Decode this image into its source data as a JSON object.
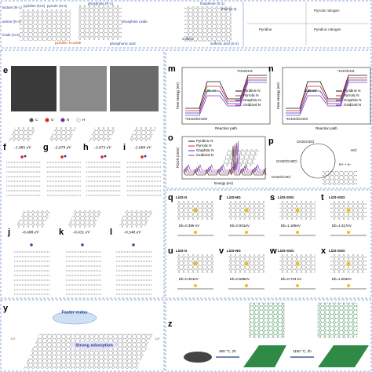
{
  "top": {
    "labels": [
      "lactam (N-1)",
      "pyridine (N-2)",
      "pyrrole (N-3)",
      "amine (N-4)",
      "imide (N-5)",
      "pyridinic N-oxide",
      "phosphine (P-1)",
      "phosphine oxide",
      "phosphonic acid",
      "thiophene (S-1)",
      "thiol (S-3)",
      "sulfone",
      "sulfonic acid (S-2)",
      "Pyridine",
      "Pyrrolic nitrogen",
      "Pyridinic nitrogen"
    ]
  },
  "panels": {
    "e": "e",
    "f": "f",
    "g": "g",
    "h": "h",
    "i": "i",
    "j": "j",
    "k": "k",
    "l": "l",
    "m": "m",
    "n": "n",
    "o": "o",
    "p": "p",
    "q": "q",
    "r": "r",
    "s": "s",
    "t": "t",
    "u": "u",
    "v": "v",
    "w": "w",
    "x": "x",
    "y": "y",
    "z": "z"
  },
  "atoms": [
    "C",
    "O",
    "N",
    "H"
  ],
  "row1": [
    {
      "label": "f",
      "energy": "-1.685 eV"
    },
    {
      "label": "g",
      "energy": "-2.679 eV"
    },
    {
      "label": "h",
      "energy": "-3.673 eV"
    },
    {
      "label": "i",
      "energy": "-2.669 eV"
    }
  ],
  "row2": [
    {
      "label": "j",
      "energy": "-0.408 eV"
    },
    {
      "label": "k",
      "energy": "-0.431 eV"
    },
    {
      "label": "l",
      "energy": "-0.348 eV"
    }
  ],
  "legend": [
    "Pyridinic N",
    "Pyrrolic N",
    "Graphitic N",
    "Oxidized N"
  ],
  "charts": {
    "m": {
      "ylabel": "Free energy (eV)",
      "xlabel": "Reaction path",
      "barrier": "1.95 eV",
      "species": [
        "*CH2ClCH2Cl",
        "*CH2CH2"
      ]
    },
    "n": {
      "ylabel": "Free energy (eV)",
      "xlabel": "Reaction path",
      "barrier": "2.30 eV",
      "species": [
        "*CH2ClCH2Cl",
        "*CHClCH2"
      ]
    },
    "o": {
      "ylabel": "PDOS (1/eV)",
      "xlabel": "Energy (eV)"
    }
  },
  "mechanism": [
    "CH2CH2Cl",
    "CH2ClCH2Cl",
    "HCl",
    "H+ + e-",
    "CH2ClCHCl"
  ],
  "binding": [
    {
      "name": "Li2S-G",
      "energy": "Eb=0.396 eV"
    },
    {
      "name": "Li2S-NG",
      "energy": "Eb=0.931eV"
    },
    {
      "name": "Li2S-SSG",
      "energy": "Eb=1.186eV"
    },
    {
      "name": "Li2S-SSO",
      "energy": "Eb=1.317eV"
    },
    {
      "name": "Li2S-G",
      "energy": "Eb=0.401eV"
    },
    {
      "name": "Li2S-NG",
      "energy": "Eb=0.598eV"
    },
    {
      "name": "Li2S-SSG",
      "energy": "Eb=0.723 eV"
    },
    {
      "name": "Li2S-SSO",
      "energy": "Eb=1.003eV"
    }
  ],
  "y_panel": [
    "Faster redox",
    "Strong adsorption",
    "Li+"
  ],
  "z_panel": [
    "800 °C, 2h",
    "1150 °C, 2h"
  ]
}
